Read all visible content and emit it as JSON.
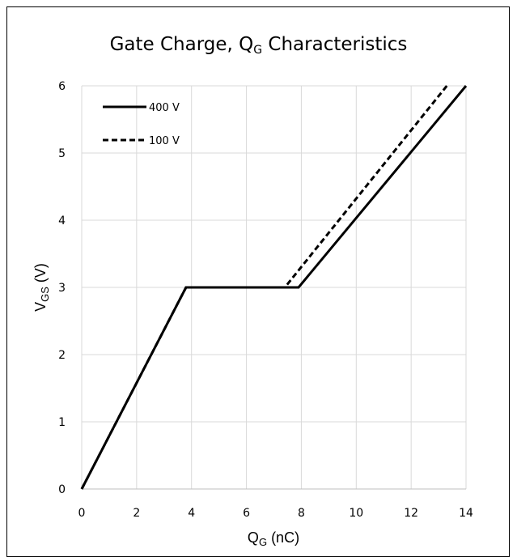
{
  "chart_data": {
    "type": "line",
    "title_main": "Gate Charge, Q",
    "title_sub": "G",
    "title_tail": " Characteristics",
    "xlabel_main": "Q",
    "xlabel_sub": "G",
    "xlabel_tail": " (nC)",
    "ylabel_main": "V",
    "ylabel_sub": "GS",
    "ylabel_tail": " (V)",
    "xlim": [
      0,
      14
    ],
    "ylim": [
      0,
      6
    ],
    "xticks": [
      0,
      2,
      4,
      6,
      8,
      10,
      12,
      14
    ],
    "yticks": [
      0,
      1,
      2,
      3,
      4,
      5,
      6
    ],
    "grid": true,
    "legend_position": "top-left",
    "series": [
      {
        "name": "400 V",
        "style": "solid",
        "color": "#000000",
        "x": [
          0,
          3.8,
          7.9,
          14.0
        ],
        "y": [
          0,
          3,
          3,
          6
        ]
      },
      {
        "name": "100 V",
        "style": "dashed",
        "color": "#000000",
        "x": [
          0,
          3.8,
          7.4,
          13.3
        ],
        "y": [
          0,
          3,
          3,
          6
        ]
      }
    ]
  }
}
